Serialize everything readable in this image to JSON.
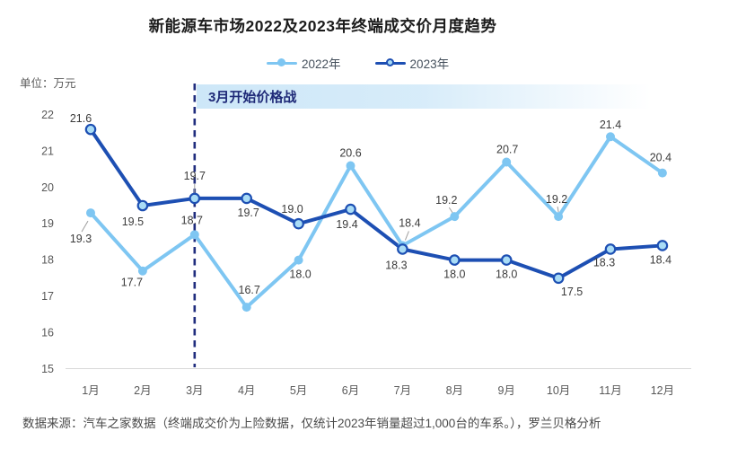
{
  "page": {
    "title": "新能源车市场2022及2023年终端成交价月度趋势",
    "unit_label": "单位：万元",
    "source_note": "数据来源：汽车之家数据（终端成交价为上险数据，仅统计2023年销量超过1,000台的车系。），罗兰贝格分析"
  },
  "chart_data": {
    "type": "line",
    "title": "新能源车市场2022及2023年终端成交价月度趋势",
    "unit": "万元",
    "categories": [
      "1月",
      "2月",
      "3月",
      "4月",
      "5月",
      "6月",
      "7月",
      "8月",
      "9月",
      "10月",
      "11月",
      "12月"
    ],
    "series": [
      {
        "name": "2022年",
        "color": "#7EC6F2",
        "marker": "solid",
        "values": [
          19.3,
          17.7,
          18.7,
          16.7,
          18.0,
          20.6,
          18.4,
          19.2,
          20.7,
          19.2,
          21.4,
          20.4
        ],
        "label_offsets": [
          [
            -11,
            33
          ],
          [
            -12,
            17
          ],
          [
            -3,
            -12
          ],
          [
            3,
            -15
          ],
          [
            2,
            20
          ],
          [
            0,
            -10
          ],
          [
            8,
            -21
          ],
          [
            -9,
            -14
          ],
          [
            1,
            -10
          ],
          [
            -2,
            -15
          ],
          [
            0,
            -9
          ],
          [
            -2,
            -13
          ]
        ],
        "leaders": [
          [
            -3,
            9,
            -10,
            21
          ],
          null,
          null,
          null,
          null,
          null,
          [
            3,
            -6,
            7,
            -16
          ],
          [
            -2,
            -4,
            -6,
            -10
          ],
          null,
          [
            0,
            -5,
            -1,
            -11
          ],
          null,
          null
        ]
      },
      {
        "name": "2023年",
        "color": "#1D4FB3",
        "marker": "open",
        "marker_fill": "#A9DCF6",
        "values": [
          21.6,
          19.5,
          19.7,
          19.7,
          19.0,
          19.4,
          18.3,
          18.0,
          18.0,
          17.5,
          18.3,
          18.4
        ],
        "label_offsets": [
          [
            -11,
            -8
          ],
          [
            -11,
            22
          ],
          [
            0,
            -21
          ],
          [
            2,
            20
          ],
          [
            -7,
            -12
          ],
          [
            -4,
            21
          ],
          [
            -7,
            22
          ],
          [
            0,
            20
          ],
          [
            0,
            20
          ],
          [
            15,
            19
          ],
          [
            -7,
            19
          ],
          [
            -2,
            20
          ]
        ],
        "leaders": [
          null,
          null,
          [
            0,
            -5,
            0,
            -16
          ],
          null,
          null,
          null,
          null,
          null,
          null,
          null,
          null,
          null
        ]
      }
    ],
    "annotation": {
      "text": "3月开始价格战",
      "month_index": 2,
      "line_color": "#202D7E",
      "text_color": "#1F2A78",
      "banner_color": "#CDE7F8"
    },
    "yticks": [
      15,
      16,
      17,
      18,
      19,
      20,
      21,
      22
    ],
    "ylim": [
      15,
      22
    ],
    "xlabel": "",
    "ylabel": "单位：万元",
    "grid": false,
    "legend_position": "top"
  }
}
